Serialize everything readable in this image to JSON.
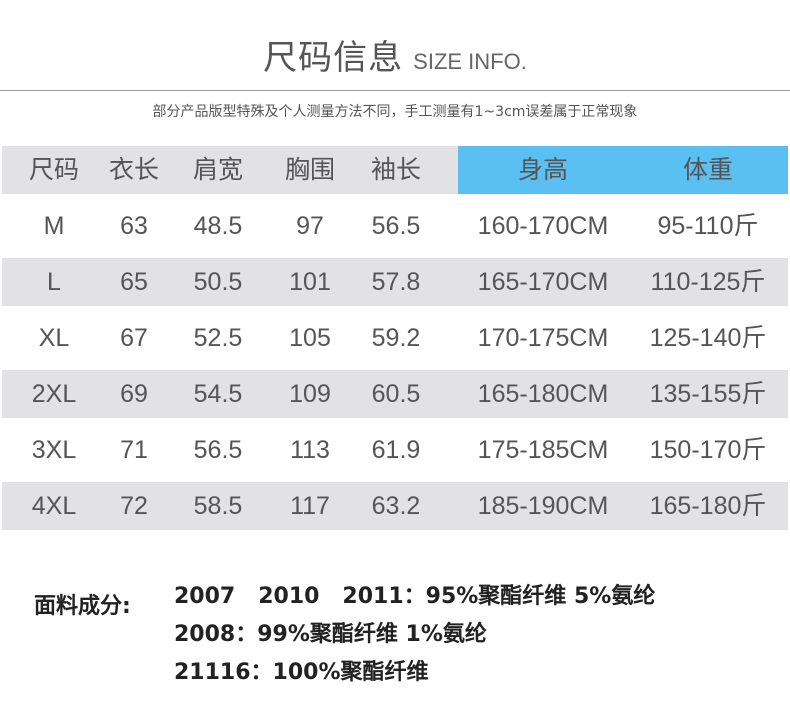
{
  "title": {
    "cn": "尺码信息",
    "en": "SIZE INFO."
  },
  "note": "部分产品版型特殊及个人测量方法不同，手工测量有1~3cm误差属于正常现象",
  "table": {
    "headers": [
      "尺码",
      "衣长",
      "肩宽",
      "胸围",
      "袖长",
      "身高",
      "体重"
    ],
    "highlight_color": "#5ac0f2",
    "rows": [
      [
        "M",
        "63",
        "48.5",
        "97",
        "56.5",
        "160-170CM",
        "95-110斤"
      ],
      [
        "L",
        "65",
        "50.5",
        "101",
        "57.8",
        "165-170CM",
        "110-125斤"
      ],
      [
        "XL",
        "67",
        "52.5",
        "105",
        "59.2",
        "170-175CM",
        "125-140斤"
      ],
      [
        "2XL",
        "69",
        "54.5",
        "109",
        "60.5",
        "165-180CM",
        "135-155斤"
      ],
      [
        "3XL",
        "71",
        "56.5",
        "113",
        "61.9",
        "175-185CM",
        "150-170斤"
      ],
      [
        "4XL",
        "72",
        "58.5",
        "117",
        "63.2",
        "185-190CM",
        "165-180斤"
      ]
    ]
  },
  "fabric": {
    "label": "面料成分:",
    "lines": [
      "2007   2010   2011：95%聚酯纤维 5%氨纶",
      "2008：99%聚酯纤维 1%氨纶",
      "21116：100%聚酯纤维"
    ]
  }
}
